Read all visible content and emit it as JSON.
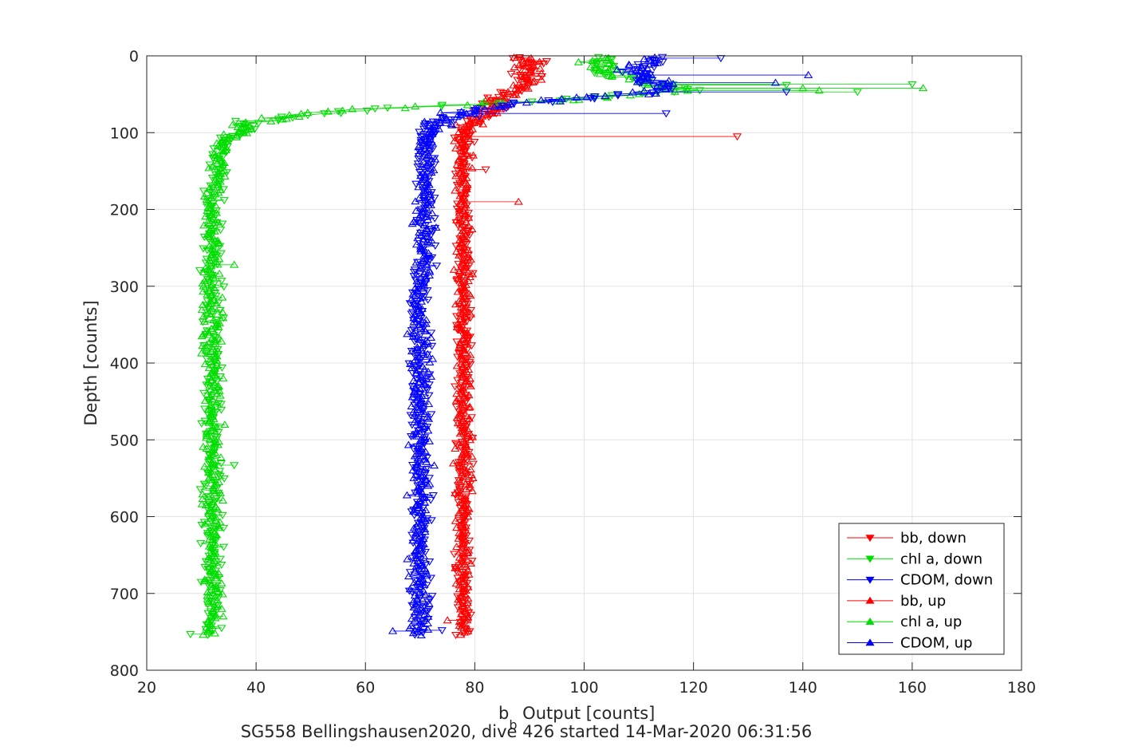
{
  "chart_data": {
    "type": "scatter",
    "xlabel_main": "b",
    "xlabel_sub": "b",
    "xlabel_rest": " Output [counts]",
    "ylabel": "Depth [counts]",
    "caption": "SG558 Bellingshausen2020, dive 426 started 14-Mar-2020 06:31:56",
    "xlim": [
      20,
      180
    ],
    "ylim": [
      0,
      800
    ],
    "y_reversed": true,
    "grid": true,
    "legend_position": "bottom-right",
    "xticks": [
      20,
      40,
      60,
      80,
      100,
      120,
      140,
      160,
      180
    ],
    "yticks": [
      0,
      100,
      200,
      300,
      400,
      500,
      600,
      700,
      800
    ],
    "colors": {
      "red": "#ff0000",
      "green": "#00dd00",
      "blue": "#0000ff"
    },
    "profiles": {
      "bb": [
        [
          90,
          5
        ],
        [
          90,
          15
        ],
        [
          90,
          25
        ],
        [
          89,
          35
        ],
        [
          87,
          45
        ],
        [
          85,
          55
        ],
        [
          84,
          60
        ],
        [
          83,
          68
        ],
        [
          81,
          78
        ],
        [
          79,
          90
        ],
        [
          78,
          100
        ],
        [
          78,
          120
        ],
        [
          78,
          140
        ],
        [
          78,
          160
        ],
        [
          78,
          180
        ],
        [
          78,
          200
        ],
        [
          78,
          250
        ],
        [
          78,
          300
        ],
        [
          78,
          350
        ],
        [
          78,
          400
        ],
        [
          78,
          450
        ],
        [
          78,
          500
        ],
        [
          78,
          550
        ],
        [
          78,
          600
        ],
        [
          78,
          650
        ],
        [
          78,
          700
        ],
        [
          78,
          755
        ]
      ],
      "chl": [
        [
          104,
          5
        ],
        [
          104,
          15
        ],
        [
          105,
          25
        ],
        [
          112,
          35
        ],
        [
          118,
          45
        ],
        [
          100,
          55
        ],
        [
          90,
          60
        ],
        [
          75,
          65
        ],
        [
          62,
          68
        ],
        [
          52,
          74
        ],
        [
          45,
          80
        ],
        [
          40,
          88
        ],
        [
          37,
          97
        ],
        [
          35,
          108
        ],
        [
          34,
          120
        ],
        [
          33,
          140
        ],
        [
          33,
          160
        ],
        [
          32,
          180
        ],
        [
          32,
          200
        ],
        [
          32,
          250
        ],
        [
          32,
          300
        ],
        [
          32,
          350
        ],
        [
          32,
          400
        ],
        [
          32,
          450
        ],
        [
          32,
          500
        ],
        [
          32,
          550
        ],
        [
          32,
          600
        ],
        [
          32,
          650
        ],
        [
          32,
          700
        ],
        [
          32,
          755
        ]
      ],
      "cdom": [
        [
          112,
          5
        ],
        [
          111,
          15
        ],
        [
          110,
          25
        ],
        [
          112,
          35
        ],
        [
          115,
          45
        ],
        [
          102,
          55
        ],
        [
          92,
          60
        ],
        [
          84,
          66
        ],
        [
          78,
          75
        ],
        [
          74,
          85
        ],
        [
          72,
          95
        ],
        [
          71,
          110
        ],
        [
          71,
          130
        ],
        [
          71,
          150
        ],
        [
          71,
          170
        ],
        [
          71,
          190
        ],
        [
          71,
          220
        ],
        [
          71,
          250
        ],
        [
          70,
          300
        ],
        [
          70,
          350
        ],
        [
          70,
          400
        ],
        [
          70,
          450
        ],
        [
          70,
          500
        ],
        [
          70,
          550
        ],
        [
          70,
          600
        ],
        [
          70,
          650
        ],
        [
          70,
          700
        ],
        [
          70,
          755
        ]
      ]
    },
    "spread": {
      "bb": 1.2,
      "chl": 1.5,
      "cdom": 1.6
    },
    "outliers": {
      "bb": [
        [
          128,
          105
        ],
        [
          88,
          190
        ],
        [
          82,
          148
        ],
        [
          75,
          735
        ],
        [
          87,
          3
        ]
      ],
      "chl": [
        [
          160,
          37
        ],
        [
          162,
          42
        ],
        [
          150,
          47
        ],
        [
          143,
          45
        ],
        [
          137,
          38
        ],
        [
          140,
          42
        ],
        [
          28,
          753
        ],
        [
          36,
          272
        ],
        [
          36,
          533
        ],
        [
          34,
          730
        ]
      ],
      "cdom": [
        [
          125,
          3
        ],
        [
          141,
          25
        ],
        [
          115,
          75
        ],
        [
          135,
          35
        ],
        [
          137,
          47
        ],
        [
          65,
          749
        ],
        [
          74,
          748
        ]
      ]
    },
    "legend": [
      {
        "label": "bb, down",
        "color": "#ff0000",
        "marker": "down"
      },
      {
        "label": "chl a, down",
        "color": "#00dd00",
        "marker": "down"
      },
      {
        "label": "CDOM, down",
        "color": "#0000ff",
        "marker": "down"
      },
      {
        "label": "bb, up",
        "color": "#ff0000",
        "marker": "up"
      },
      {
        "label": "chl a, up",
        "color": "#00dd00",
        "marker": "up"
      },
      {
        "label": "CDOM, up",
        "color": "#0000ff",
        "marker": "up"
      }
    ]
  }
}
